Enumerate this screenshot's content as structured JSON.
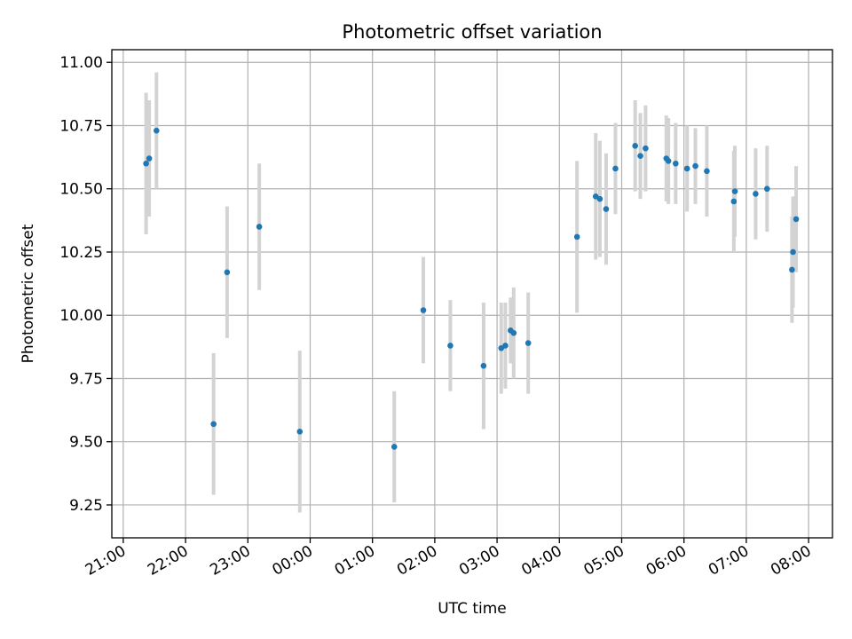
{
  "chart_data": {
    "type": "scatter",
    "title": "Photometric offset variation",
    "xlabel": "UTC time",
    "ylabel": "Photometric offset",
    "x_unit": "hours",
    "xlim": [
      "21:00",
      "08:00"
    ],
    "xlim_extent": [
      "20:49",
      "08:23"
    ],
    "ylim": [
      9.12,
      11.05
    ],
    "x_ticks": [
      "21:00",
      "22:00",
      "23:00",
      "00:00",
      "01:00",
      "02:00",
      "03:00",
      "04:00",
      "05:00",
      "06:00",
      "07:00",
      "08:00"
    ],
    "y_ticks": [
      "9.25",
      "9.50",
      "9.75",
      "10.00",
      "10.25",
      "10.50",
      "10.75",
      "11.00"
    ],
    "grid": true,
    "series": [
      {
        "marker_color": "#1f77b4",
        "errorbar_color": "#d3d3d3",
        "points": [
          {
            "x": "21:22",
            "y": 10.6,
            "err": 0.28
          },
          {
            "x": "21:25",
            "y": 10.62,
            "err": 0.23
          },
          {
            "x": "21:32",
            "y": 10.73,
            "err": 0.23
          },
          {
            "x": "22:27",
            "y": 9.57,
            "err": 0.28
          },
          {
            "x": "22:40",
            "y": 10.17,
            "err": 0.26
          },
          {
            "x": "23:11",
            "y": 10.35,
            "err": 0.25
          },
          {
            "x": "23:50",
            "y": 9.54,
            "err": 0.32
          },
          {
            "x": "01:21",
            "y": 9.48,
            "err": 0.22
          },
          {
            "x": "01:49",
            "y": 10.02,
            "err": 0.21
          },
          {
            "x": "02:15",
            "y": 9.88,
            "err": 0.18
          },
          {
            "x": "02:47",
            "y": 9.8,
            "err": 0.25
          },
          {
            "x": "03:04",
            "y": 9.87,
            "err": 0.18
          },
          {
            "x": "03:08",
            "y": 9.88,
            "err": 0.17
          },
          {
            "x": "03:13",
            "y": 9.94,
            "err": 0.13
          },
          {
            "x": "03:16",
            "y": 9.93,
            "err": 0.18
          },
          {
            "x": "03:30",
            "y": 9.89,
            "err": 0.2
          },
          {
            "x": "04:17",
            "y": 10.31,
            "err": 0.3
          },
          {
            "x": "04:35",
            "y": 10.47,
            "err": 0.25
          },
          {
            "x": "04:39",
            "y": 10.46,
            "err": 0.23
          },
          {
            "x": "04:45",
            "y": 10.42,
            "err": 0.22
          },
          {
            "x": "04:54",
            "y": 10.58,
            "err": 0.18
          },
          {
            "x": "05:13",
            "y": 10.67,
            "err": 0.18
          },
          {
            "x": "05:18",
            "y": 10.63,
            "err": 0.17
          },
          {
            "x": "05:23",
            "y": 10.66,
            "err": 0.17
          },
          {
            "x": "05:43",
            "y": 10.62,
            "err": 0.17
          },
          {
            "x": "05:45",
            "y": 10.61,
            "err": 0.17
          },
          {
            "x": "05:52",
            "y": 10.6,
            "err": 0.16
          },
          {
            "x": "06:03",
            "y": 10.58,
            "err": 0.17
          },
          {
            "x": "06:11",
            "y": 10.59,
            "err": 0.15
          },
          {
            "x": "06:22",
            "y": 10.57,
            "err": 0.18
          },
          {
            "x": "06:48",
            "y": 10.45,
            "err": 0.2
          },
          {
            "x": "06:49",
            "y": 10.49,
            "err": 0.18
          },
          {
            "x": "07:09",
            "y": 10.48,
            "err": 0.18
          },
          {
            "x": "07:20",
            "y": 10.5,
            "err": 0.17
          },
          {
            "x": "07:44",
            "y": 10.18,
            "err": 0.21
          },
          {
            "x": "07:45",
            "y": 10.25,
            "err": 0.22
          },
          {
            "x": "07:48",
            "y": 10.38,
            "err": 0.21
          }
        ]
      }
    ]
  }
}
